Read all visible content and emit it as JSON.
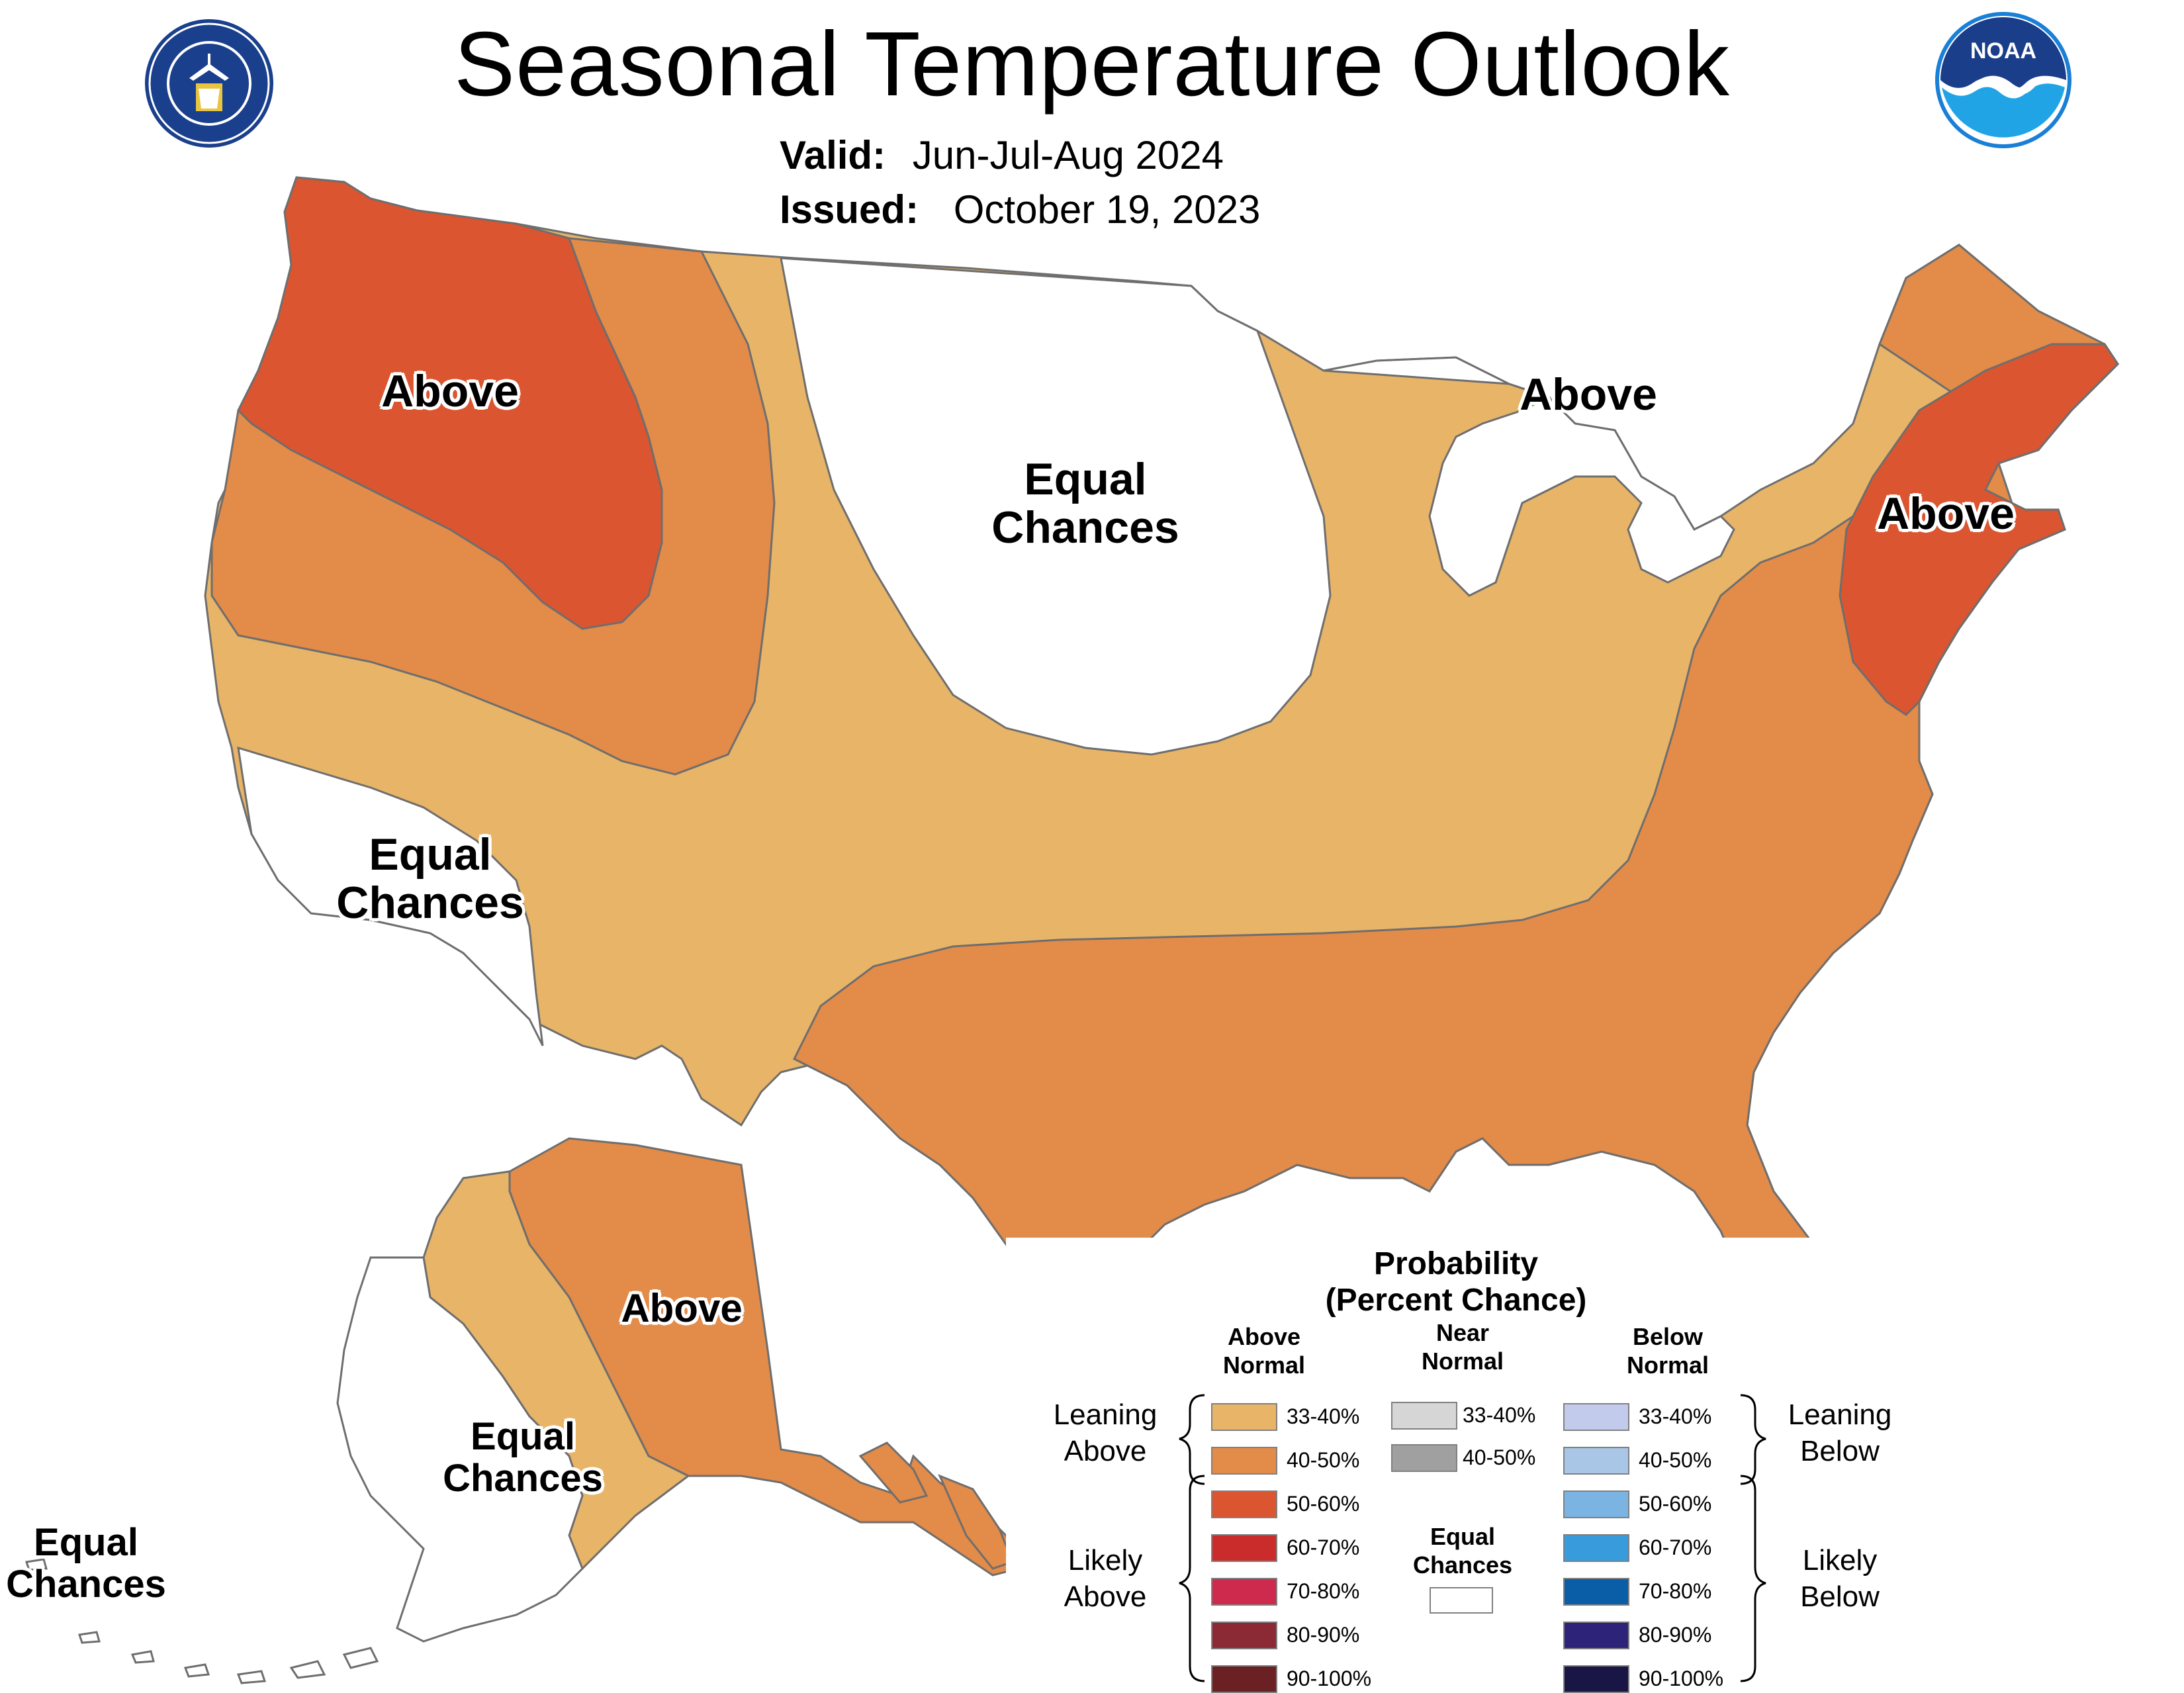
{
  "header": {
    "title": "Seasonal Temperature Outlook",
    "valid_label": "Valid:",
    "valid_value": "Jun-Jul-Aug 2024",
    "issued_label": "Issued:",
    "issued_value": "October 19, 2023",
    "logos": {
      "left": "Department of Commerce seal",
      "right": "NOAA logo",
      "right_text": "NOAA"
    }
  },
  "map": {
    "labels": {
      "west_above": "Above",
      "midwest_above": "Above",
      "northeast_above": "Above",
      "plains_equal_1": "Equal",
      "plains_equal_2": "Chances",
      "cal_equal_1": "Equal",
      "cal_equal_2": "Chances",
      "ak_above": "Above",
      "ak_equal_1": "Equal",
      "ak_equal_2": "Chances",
      "aleut_equal_1": "Equal",
      "aleut_equal_2": "Chances"
    },
    "colors": {
      "a_33_40": "#E8B468",
      "a_40_50": "#E38B48",
      "a_50_60": "#DB5530",
      "equal": "#FFFFFF",
      "border": "#6E6E6E"
    }
  },
  "legend": {
    "title_1": "Probability",
    "title_2": "(Percent Chance)",
    "above_head_1": "Above",
    "above_head_2": "Normal",
    "near_head_1": "Near",
    "near_head_2": "Normal",
    "below_head_1": "Below",
    "below_head_2": "Normal",
    "leaning_above_1": "Leaning",
    "leaning_above_2": "Above",
    "likely_above_1": "Likely",
    "likely_above_2": "Above",
    "leaning_below_1": "Leaning",
    "leaning_below_2": "Below",
    "likely_below_1": "Likely",
    "likely_below_2": "Below",
    "equal_1": "Equal",
    "equal_2": "Chances",
    "above": [
      {
        "label": "33-40%",
        "color": "#E8B468"
      },
      {
        "label": "40-50%",
        "color": "#E38B48"
      },
      {
        "label": "50-60%",
        "color": "#DB5530"
      },
      {
        "label": "60-70%",
        "color": "#C92C2A"
      },
      {
        "label": "70-80%",
        "color": "#CE2A4D"
      },
      {
        "label": "80-90%",
        "color": "#8B2A34"
      },
      {
        "label": "90-100%",
        "color": "#6B2024"
      }
    ],
    "near": [
      {
        "label": "33-40%",
        "color": "#D6D6D6"
      },
      {
        "label": "40-50%",
        "color": "#A0A0A0"
      }
    ],
    "below": [
      {
        "label": "33-40%",
        "color": "#C2CBEB"
      },
      {
        "label": "40-50%",
        "color": "#A9C6E6"
      },
      {
        "label": "50-60%",
        "color": "#7BB3E3"
      },
      {
        "label": "60-70%",
        "color": "#389BDC"
      },
      {
        "label": "70-80%",
        "color": "#0A5EA8"
      },
      {
        "label": "80-90%",
        "color": "#2D2378"
      },
      {
        "label": "90-100%",
        "color": "#191646"
      }
    ]
  }
}
